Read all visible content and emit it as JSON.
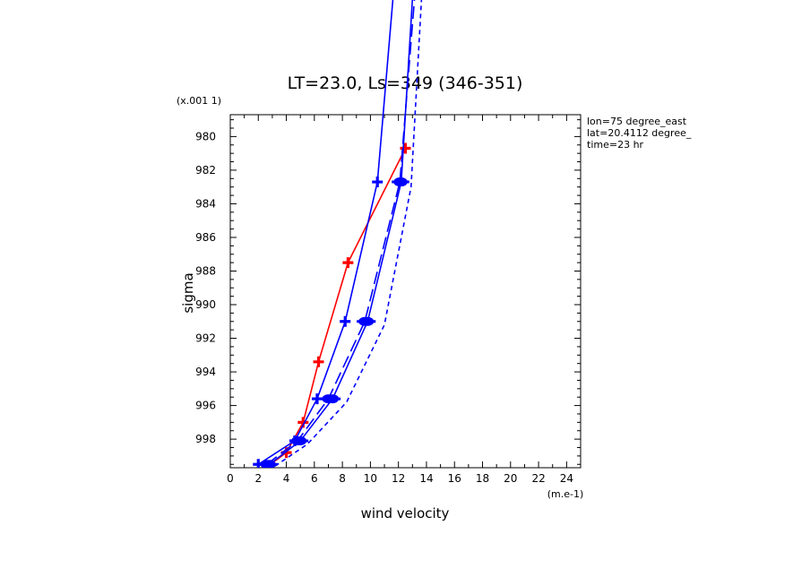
{
  "chart_data": {
    "type": "line",
    "title": "LT=23.0, Ls=349 (346-351)",
    "xlabel": "wind velocity",
    "ylabel": "sigma",
    "x_unit": "(m.e-1)",
    "y_unit": "(x.001 1)",
    "xlim": [
      0,
      25
    ],
    "ylim": [
      999.7,
      978.7
    ],
    "x_ticks": [
      0,
      2,
      4,
      6,
      8,
      10,
      12,
      14,
      16,
      18,
      20,
      22,
      24
    ],
    "y_ticks": [
      980,
      982,
      984,
      986,
      988,
      990,
      992,
      994,
      996,
      998
    ],
    "annotations": [
      "lon=75 degree_east",
      "lat=20.4112 degree_",
      "time=23 hr"
    ],
    "series": [
      {
        "color": "#ff0000",
        "style": "solid",
        "marker": "plus",
        "x": [
          2.7,
          4.0,
          5.2,
          6.3,
          8.4,
          12.5
        ],
        "y": [
          999.6,
          998.8,
          997.0,
          993.4,
          987.5,
          980.7
        ]
      },
      {
        "color": "#0000ff",
        "style": "solid",
        "marker": "plus",
        "x": [
          2.0,
          4.6,
          6.2,
          8.2,
          10.5,
          12.3
        ],
        "y": [
          999.5,
          998.1,
          995.6,
          991.0,
          982.7,
          965.0
        ]
      },
      {
        "color": "#0000ff",
        "style": "solid",
        "marker": "dot",
        "x": [
          2.8,
          5.0,
          7.3,
          9.8,
          12.2,
          13.5
        ],
        "y": [
          999.5,
          998.1,
          995.6,
          991.0,
          982.7,
          965.0
        ]
      },
      {
        "color": "#0000ff",
        "style": "longdash",
        "marker": "dot",
        "x": [
          2.6,
          4.8,
          7.0,
          9.6,
          12.1,
          13.8
        ],
        "y": [
          999.5,
          998.1,
          995.6,
          991.0,
          982.7,
          965.0
        ]
      },
      {
        "color": "#0000ff",
        "style": "shortdash",
        "marker": "none",
        "x": [
          3.2,
          5.5,
          8.3,
          11.0,
          12.9,
          14.1
        ],
        "y": [
          999.6,
          998.3,
          995.8,
          991.2,
          983.0,
          965.0
        ]
      }
    ]
  }
}
